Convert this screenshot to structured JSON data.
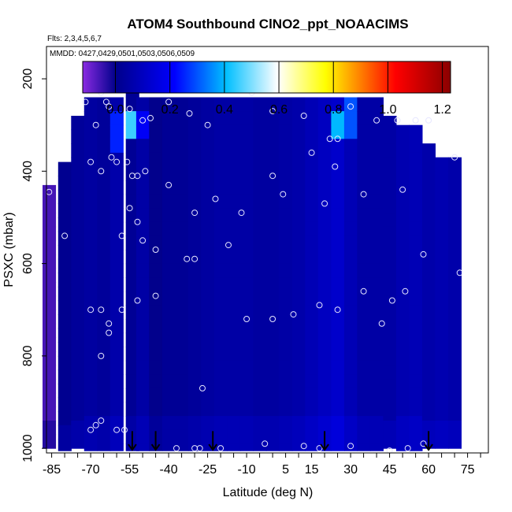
{
  "chart_data": {
    "type": "heatmap",
    "title": "ATOM4 Southbound ClNO2_ppt_NOAACIMS",
    "flights_label": "Flts: 2,3,4,5,6,7",
    "dates_label": "MMDD: 0427,0429,0501,0503,0506,0509",
    "xlabel": "Latitude (deg N)",
    "ylabel": "PSXC (mbar)",
    "xlim": [
      -87,
      83
    ],
    "ylim": [
      1010,
      130
    ],
    "y_inverted": true,
    "x_ticks": [
      -85,
      -70,
      -55,
      -40,
      -25,
      -10,
      5,
      15,
      30,
      45,
      60,
      75
    ],
    "x_minor_step": 5,
    "y_ticks": [
      200,
      400,
      600,
      800,
      1000
    ],
    "colorbar": {
      "range": [
        -0.12,
        1.23
      ],
      "ticks": [
        0.0,
        0.2,
        0.4,
        0.6,
        0.8,
        1.0,
        1.2
      ],
      "tick_labels": [
        "0.0",
        "0.2",
        "0.4",
        "0.6",
        "0.8",
        "1.0",
        "1.2"
      ],
      "colors": [
        "#8a2be2",
        "#00008b",
        "#0000ff",
        "#00bfff",
        "#ffffff",
        "#ffff00",
        "#ff0000",
        "#8b0000"
      ]
    },
    "profiles": [
      {
        "x": -54,
        "p_top": 180,
        "base": 0.02,
        "hi": [
          [
            280,
            0.45
          ]
        ]
      },
      {
        "x": -86,
        "p_top": 430,
        "base": -0.06
      },
      {
        "x": -80,
        "p_top": 380,
        "base": 0.01
      },
      {
        "x": -75,
        "p_top": 280,
        "base": 0.03
      },
      {
        "x": -70,
        "p_top": 240,
        "base": 0.04
      },
      {
        "x": -65,
        "p_top": 240,
        "base": 0.03
      },
      {
        "x": -60,
        "p_top": 240,
        "base": 0.06,
        "hi": [
          [
            300,
            0.25
          ]
        ]
      },
      {
        "x": -50,
        "p_top": 240,
        "base": 0.05,
        "hi": [
          [
            290,
            0.2
          ]
        ]
      },
      {
        "x": -45,
        "p_top": 240,
        "base": 0.0
      },
      {
        "x": -40,
        "p_top": 240,
        "base": 0.02
      },
      {
        "x": -35,
        "p_top": 240,
        "base": 0.02
      },
      {
        "x": -30,
        "p_top": 240,
        "base": 0.03
      },
      {
        "x": -25,
        "p_top": 240,
        "base": 0.04
      },
      {
        "x": -20,
        "p_top": 240,
        "base": 0.05
      },
      {
        "x": -15,
        "p_top": 240,
        "base": 0.05
      },
      {
        "x": -10,
        "p_top": 240,
        "base": 0.05
      },
      {
        "x": -5,
        "p_top": 240,
        "base": 0.04
      },
      {
        "x": 0,
        "p_top": 240,
        "base": 0.04
      },
      {
        "x": 5,
        "p_top": 240,
        "base": 0.05
      },
      {
        "x": 10,
        "p_top": 240,
        "base": 0.06
      },
      {
        "x": 15,
        "p_top": 240,
        "base": 0.08
      },
      {
        "x": 20,
        "p_top": 240,
        "base": 0.1
      },
      {
        "x": 25,
        "p_top": 240,
        "base": 0.12,
        "hi": [
          [
            280,
            0.4
          ]
        ]
      },
      {
        "x": 30,
        "p_top": 240,
        "base": 0.08,
        "hi": [
          [
            270,
            0.3
          ]
        ]
      },
      {
        "x": 35,
        "p_top": 240,
        "base": 0.05
      },
      {
        "x": 40,
        "p_top": 240,
        "base": 0.05
      },
      {
        "x": 45,
        "p_top": 280,
        "base": 0.05
      },
      {
        "x": 50,
        "p_top": 300,
        "base": 0.07
      },
      {
        "x": 55,
        "p_top": 300,
        "base": 0.08
      },
      {
        "x": 60,
        "p_top": 340,
        "base": 0.06
      },
      {
        "x": 65,
        "p_top": 370,
        "base": 0.07
      },
      {
        "x": 70,
        "p_top": 370,
        "base": 0.06
      }
    ],
    "observations": [
      [
        -72,
        250
      ],
      [
        -68,
        300
      ],
      [
        -66,
        230
      ],
      [
        -64,
        250
      ],
      [
        -63,
        260
      ],
      [
        -60,
        210
      ],
      [
        -55,
        265
      ],
      [
        -50,
        290
      ],
      [
        -47,
        285
      ],
      [
        -45,
        210
      ],
      [
        -40,
        250
      ],
      [
        -32,
        275
      ],
      [
        -25,
        300
      ],
      [
        -8,
        230
      ],
      [
        0,
        270
      ],
      [
        12,
        280
      ],
      [
        22,
        330
      ],
      [
        25,
        330
      ],
      [
        28,
        220
      ],
      [
        30,
        260
      ],
      [
        40,
        290
      ],
      [
        48,
        290
      ],
      [
        55,
        290
      ],
      [
        60,
        290
      ],
      [
        -70,
        380
      ],
      [
        -66,
        400
      ],
      [
        -62,
        370
      ],
      [
        -60,
        380
      ],
      [
        -56,
        380
      ],
      [
        -54,
        410
      ],
      [
        -52,
        410
      ],
      [
        -49,
        400
      ],
      [
        -40,
        430
      ],
      [
        -30,
        490
      ],
      [
        -22,
        460
      ],
      [
        -12,
        490
      ],
      [
        0,
        410
      ],
      [
        4,
        450
      ],
      [
        15,
        360
      ],
      [
        20,
        470
      ],
      [
        24,
        390
      ],
      [
        35,
        450
      ],
      [
        50,
        440
      ],
      [
        70,
        370
      ],
      [
        -86,
        445
      ],
      [
        -80,
        540
      ],
      [
        -58,
        540
      ],
      [
        -55,
        480
      ],
      [
        -52,
        510
      ],
      [
        -50,
        550
      ],
      [
        -45,
        570
      ],
      [
        -30,
        590
      ],
      [
        -17,
        560
      ],
      [
        58,
        580
      ],
      [
        72,
        620
      ],
      [
        -70,
        700
      ],
      [
        -66,
        700
      ],
      [
        -63,
        730
      ],
      [
        -63,
        750
      ],
      [
        -58,
        700
      ],
      [
        -52,
        680
      ],
      [
        -45,
        670
      ],
      [
        -33,
        590
      ],
      [
        -10,
        720
      ],
      [
        0,
        720
      ],
      [
        8,
        710
      ],
      [
        18,
        690
      ],
      [
        25,
        700
      ],
      [
        35,
        660
      ],
      [
        42,
        730
      ],
      [
        46,
        680
      ],
      [
        51,
        660
      ],
      [
        -66,
        800
      ],
      [
        -27,
        870
      ],
      [
        -70,
        960
      ],
      [
        -68,
        950
      ],
      [
        -66,
        940
      ],
      [
        -60,
        960
      ],
      [
        -57,
        960
      ],
      [
        -37,
        1000
      ],
      [
        -30,
        1000
      ],
      [
        -28,
        1000
      ],
      [
        -20,
        1000
      ],
      [
        -3,
        990
      ],
      [
        12,
        995
      ],
      [
        18,
        1000
      ],
      [
        30,
        995
      ],
      [
        45,
        1005
      ],
      [
        52,
        1000
      ],
      [
        58,
        990
      ]
    ],
    "arrows_x": [
      -54,
      -45,
      -23,
      20,
      60
    ]
  }
}
